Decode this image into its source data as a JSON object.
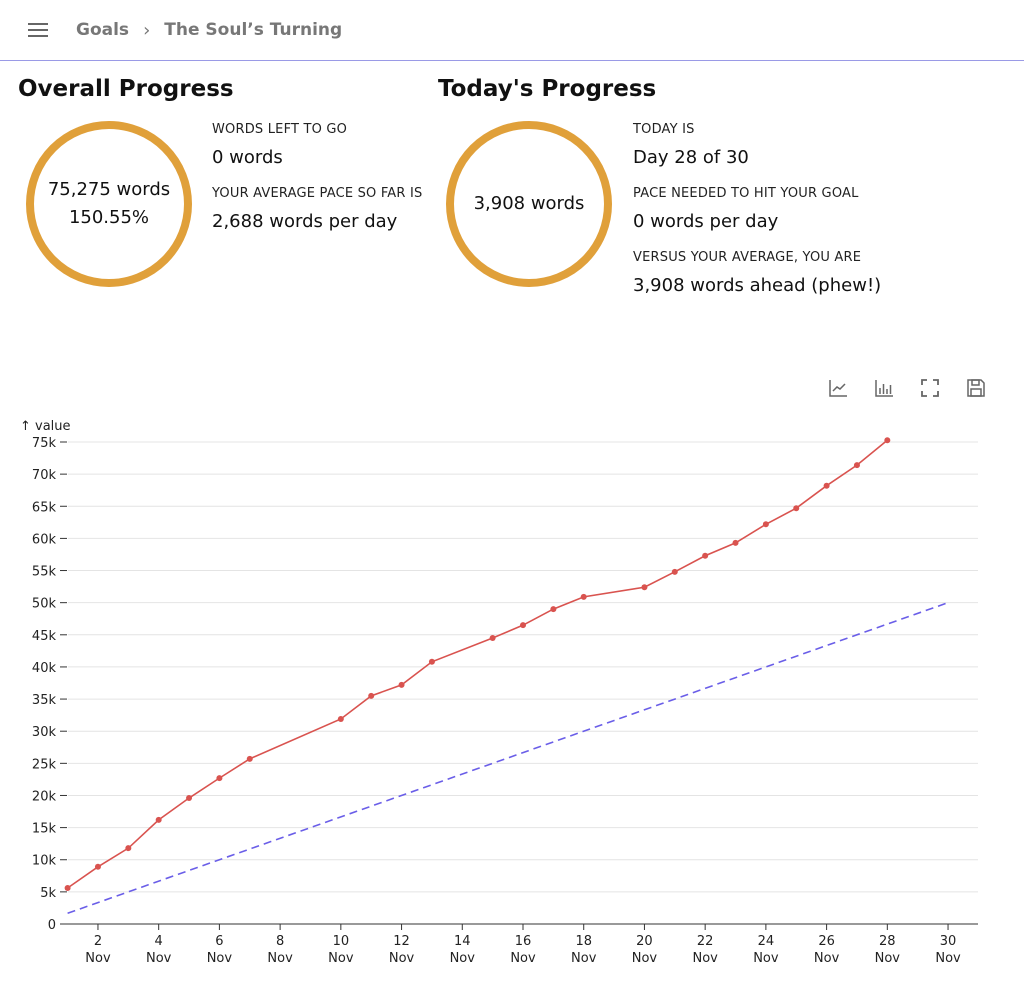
{
  "header": {
    "breadcrumb": [
      "Goals",
      "The Soul’s Turning"
    ]
  },
  "overall": {
    "title": "Overall Progress",
    "ring_words": "75,275 words",
    "ring_percent": "150.55%",
    "left_label": "WORDS LEFT TO GO",
    "left_value": "0 words",
    "pace_label": "YOUR AVERAGE PACE SO FAR IS",
    "pace_value": "2,688 words per day"
  },
  "today": {
    "title": "Today's Progress",
    "ring_words": "3,908 words",
    "day_label": "TODAY IS",
    "day_value": "Day 28 of 30",
    "needed_label": "PACE NEEDED TO HIT YOUR GOAL",
    "needed_value": "0 words per day",
    "versus_label": "VERSUS YOUR AVERAGE, YOU ARE",
    "versus_value": "3,908 words ahead (phew!)"
  },
  "toolbar": [
    "line-chart-icon",
    "bar-chart-icon",
    "fullscreen-icon",
    "save-icon"
  ],
  "chart_data": {
    "type": "line",
    "ylabel": "↑ value",
    "ylim": [
      0,
      75000
    ],
    "grid": true,
    "yticks": [
      "0",
      "5k",
      "10k",
      "15k",
      "20k",
      "25k",
      "30k",
      "35k",
      "40k",
      "45k",
      "50k",
      "55k",
      "60k",
      "65k",
      "70k",
      "75k"
    ],
    "xticks": [
      2,
      4,
      6,
      8,
      10,
      12,
      14,
      16,
      18,
      20,
      22,
      24,
      26,
      28,
      30
    ],
    "xtick_month": "Nov",
    "colors": {
      "actual": "#d9534f",
      "goal": "#6a5ee8"
    },
    "series": [
      {
        "style": "solid",
        "points": [
          [
            1,
            5600
          ],
          [
            2,
            8900
          ],
          [
            3,
            11800
          ],
          [
            4,
            16200
          ],
          [
            5,
            19600
          ],
          [
            6,
            22700
          ],
          [
            7,
            25700
          ],
          [
            10,
            31900
          ],
          [
            11,
            35500
          ],
          [
            12,
            37200
          ],
          [
            13,
            40800
          ],
          [
            15,
            44500
          ],
          [
            16,
            46500
          ],
          [
            17,
            49000
          ],
          [
            18,
            50900
          ],
          [
            20,
            52400
          ],
          [
            21,
            54800
          ],
          [
            22,
            57300
          ],
          [
            23,
            59300
          ],
          [
            24,
            62200
          ],
          [
            25,
            64700
          ],
          [
            26,
            68200
          ],
          [
            27,
            71400
          ],
          [
            28,
            75275
          ]
        ]
      },
      {
        "style": "dashed",
        "points": [
          [
            1,
            1667
          ],
          [
            30,
            50000
          ]
        ]
      }
    ]
  }
}
